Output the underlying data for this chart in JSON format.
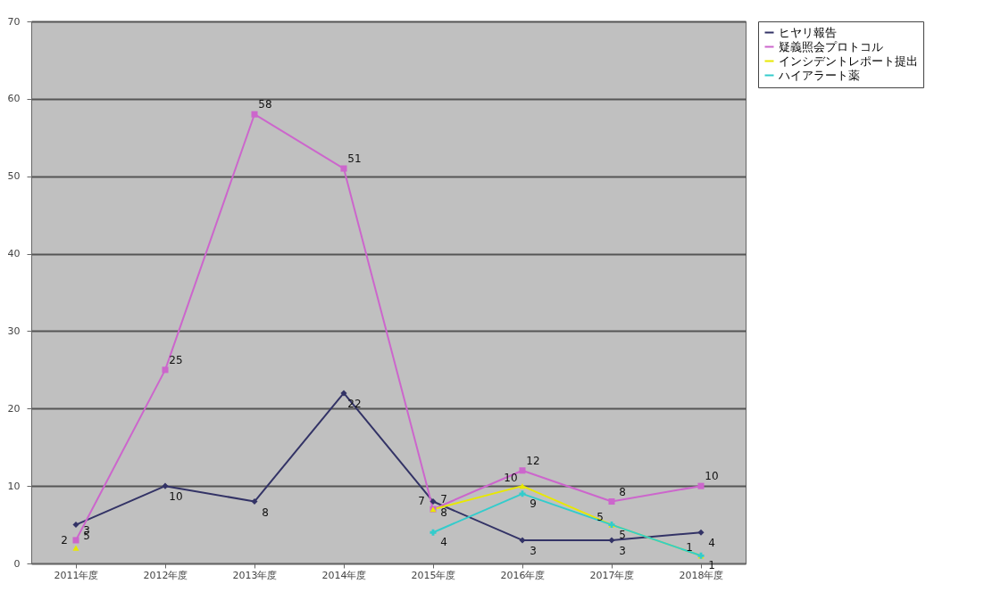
{
  "chart_data": {
    "type": "line",
    "categories": [
      "2011年度",
      "2012年度",
      "2013年度",
      "2014年度",
      "2015年度",
      "2016年度",
      "2017年度",
      "2018年度"
    ],
    "series": [
      {
        "name": "ヒヤリ報告",
        "color": "#333366",
        "marker": "diamond",
        "values": [
          5,
          10,
          8,
          22,
          8,
          3,
          3,
          4
        ]
      },
      {
        "name": "疑義照会プロトコル",
        "color": "#cc66cc",
        "marker": "square",
        "values": [
          3,
          25,
          58,
          51,
          7,
          12,
          8,
          10
        ]
      },
      {
        "name": "インシデントレポート提出",
        "color": "#e8e800",
        "marker": "triangle",
        "values": [
          2,
          null,
          null,
          null,
          7,
          10,
          5,
          1
        ]
      },
      {
        "name": "ハイアラート薬",
        "color": "#33cccc",
        "marker": "cross",
        "values": [
          null,
          null,
          null,
          null,
          4,
          9,
          5,
          1
        ]
      }
    ],
    "ylim": [
      0,
      70
    ],
    "yticks": [
      0,
      10,
      20,
      30,
      40,
      50,
      60,
      70
    ],
    "grid": "y",
    "legend": "right",
    "data_labels": true
  }
}
